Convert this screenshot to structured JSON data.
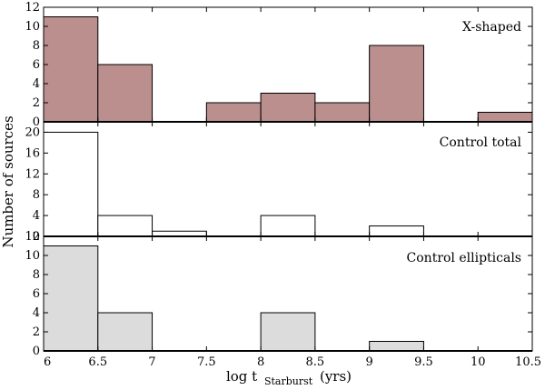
{
  "chart_data": {
    "type": "bar",
    "layout": "three stacked histogram panels sharing x axis",
    "xlabel": "log t",
    "xlabel_subscript": "Starburst",
    "xlabel_units": "(yrs)",
    "ylabel": "Number of sources",
    "x_range": [
      6,
      10.5
    ],
    "x_ticks": [
      6,
      6.5,
      7,
      7.5,
      8,
      8.5,
      9,
      9.5,
      10,
      10.5
    ],
    "x_tick_labels": [
      "6",
      "6.5",
      "7",
      "7.5",
      "8",
      "8.5",
      "9",
      "9.5",
      "10",
      "10.5"
    ],
    "bin_edges": [
      6,
      6.5,
      7,
      7.5,
      8,
      8.5,
      9,
      9.5,
      10,
      10.5
    ],
    "panels": [
      {
        "name": "X-shaped",
        "label": "X-shaped",
        "values": [
          11,
          6,
          0,
          2,
          3,
          2,
          8,
          0,
          1
        ],
        "ylim": [
          0,
          12
        ],
        "y_ticks": [
          0,
          2,
          4,
          6,
          8,
          10,
          12
        ],
        "y_tick_labels": [
          "0",
          "2",
          "4",
          "6",
          "8",
          "10",
          "12"
        ],
        "fill": "#bc8f8f"
      },
      {
        "name": "Control total",
        "label": "Control total",
        "values": [
          20,
          4,
          1,
          0,
          4,
          0,
          2,
          0,
          0
        ],
        "ylim": [
          0,
          22
        ],
        "y_ticks": [
          0,
          4,
          8,
          12,
          16,
          20
        ],
        "y_tick_labels": [
          "0",
          "4",
          "8",
          "12",
          "16",
          "20"
        ],
        "fill": "#ffffff"
      },
      {
        "name": "Control ellipticals",
        "label": "Control ellipticals",
        "values": [
          11,
          4,
          0,
          0,
          4,
          0,
          1,
          0,
          0
        ],
        "ylim": [
          0,
          12
        ],
        "y_ticks": [
          0,
          2,
          4,
          6,
          8,
          10,
          12
        ],
        "y_tick_labels": [
          "0",
          "2",
          "4",
          "6",
          "8",
          "10",
          "12"
        ],
        "fill": "#dcdcdc"
      }
    ]
  }
}
